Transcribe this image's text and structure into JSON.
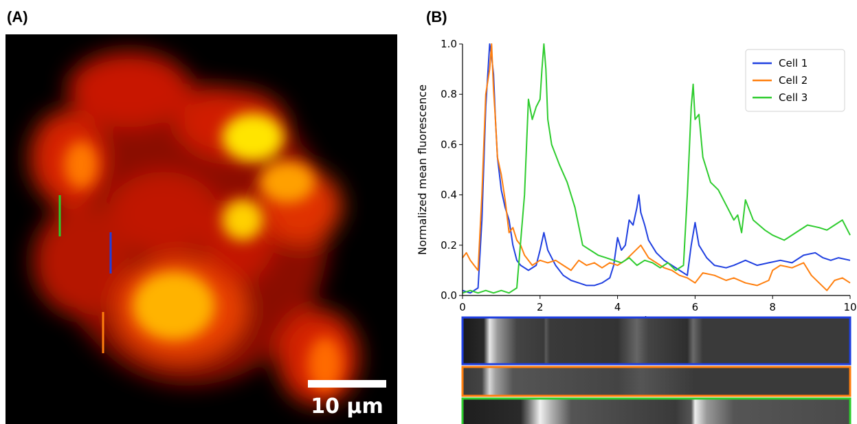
{
  "panels": {
    "a_label": "(A)",
    "b_label": "(B)"
  },
  "scale_bar": {
    "label": "10 μm"
  },
  "markers": [
    {
      "cell": "Cell 1",
      "color": "#1f3fe0"
    },
    {
      "cell": "Cell 2",
      "color": "#ff7f0e"
    },
    {
      "cell": "Cell 3",
      "color": "#2ecc2e"
    }
  ],
  "chart_data": {
    "type": "line",
    "xlabel": "Minutes",
    "ylabel": "Normalized mean fluorescence",
    "xlim": [
      0,
      10
    ],
    "ylim": [
      0,
      1.0
    ],
    "x_ticks": [
      0,
      2,
      4,
      6,
      8,
      10
    ],
    "y_ticks": [
      0.0,
      0.2,
      0.4,
      0.6,
      0.8,
      1.0
    ],
    "x_tick_labels": [
      "0",
      "2",
      "4",
      "6",
      "8",
      "10"
    ],
    "y_tick_labels": [
      "0.0",
      "0.2",
      "0.4",
      "0.6",
      "0.8",
      "1.0"
    ],
    "grid": false,
    "legend_position": "top-right",
    "series": [
      {
        "name": "Cell 1",
        "color": "#1f3fe0",
        "x": [
          0,
          0.2,
          0.4,
          0.5,
          0.6,
          0.7,
          0.75,
          0.8,
          0.85,
          0.9,
          1.0,
          1.1,
          1.2,
          1.3,
          1.4,
          1.5,
          1.7,
          1.9,
          2.0,
          2.1,
          2.2,
          2.4,
          2.6,
          2.8,
          3.0,
          3.2,
          3.4,
          3.6,
          3.8,
          3.9,
          4.0,
          4.1,
          4.2,
          4.3,
          4.4,
          4.5,
          4.55,
          4.6,
          4.7,
          4.8,
          5.0,
          5.2,
          5.4,
          5.6,
          5.8,
          5.9,
          6.0,
          6.1,
          6.3,
          6.5,
          6.8,
          7.0,
          7.3,
          7.6,
          7.9,
          8.2,
          8.5,
          8.8,
          9.1,
          9.3,
          9.5,
          9.7,
          10.0
        ],
        "y": [
          0.02,
          0.01,
          0.03,
          0.3,
          0.75,
          1.0,
          0.95,
          0.88,
          0.7,
          0.55,
          0.42,
          0.35,
          0.3,
          0.2,
          0.14,
          0.12,
          0.1,
          0.12,
          0.18,
          0.25,
          0.18,
          0.12,
          0.08,
          0.06,
          0.05,
          0.04,
          0.04,
          0.05,
          0.07,
          0.12,
          0.23,
          0.18,
          0.2,
          0.3,
          0.28,
          0.35,
          0.4,
          0.33,
          0.28,
          0.22,
          0.17,
          0.14,
          0.12,
          0.1,
          0.08,
          0.2,
          0.29,
          0.2,
          0.15,
          0.12,
          0.11,
          0.12,
          0.14,
          0.12,
          0.13,
          0.14,
          0.13,
          0.16,
          0.17,
          0.15,
          0.14,
          0.15,
          0.14
        ]
      },
      {
        "name": "Cell 2",
        "color": "#ff7f0e",
        "x": [
          0,
          0.1,
          0.2,
          0.3,
          0.4,
          0.5,
          0.6,
          0.7,
          0.75,
          0.8,
          0.85,
          0.9,
          1.0,
          1.1,
          1.2,
          1.3,
          1.4,
          1.5,
          1.6,
          1.8,
          2.0,
          2.2,
          2.4,
          2.6,
          2.8,
          3.0,
          3.2,
          3.4,
          3.6,
          3.8,
          4.0,
          4.2,
          4.4,
          4.6,
          4.8,
          5.0,
          5.2,
          5.4,
          5.6,
          5.8,
          6.0,
          6.2,
          6.5,
          6.8,
          7.0,
          7.3,
          7.6,
          7.9,
          8.0,
          8.2,
          8.5,
          8.8,
          9.0,
          9.2,
          9.4,
          9.6,
          9.8,
          10.0
        ],
        "y": [
          0.15,
          0.17,
          0.14,
          0.12,
          0.1,
          0.4,
          0.8,
          0.9,
          1.0,
          0.82,
          0.7,
          0.55,
          0.48,
          0.38,
          0.25,
          0.27,
          0.22,
          0.2,
          0.16,
          0.12,
          0.14,
          0.13,
          0.14,
          0.12,
          0.1,
          0.14,
          0.12,
          0.13,
          0.11,
          0.13,
          0.12,
          0.14,
          0.17,
          0.2,
          0.15,
          0.13,
          0.11,
          0.1,
          0.08,
          0.07,
          0.05,
          0.09,
          0.08,
          0.06,
          0.07,
          0.05,
          0.04,
          0.06,
          0.1,
          0.12,
          0.11,
          0.13,
          0.08,
          0.05,
          0.02,
          0.06,
          0.07,
          0.05
        ]
      },
      {
        "name": "Cell 3",
        "color": "#2ecc2e",
        "x": [
          0,
          0.2,
          0.4,
          0.6,
          0.8,
          1.0,
          1.2,
          1.4,
          1.6,
          1.7,
          1.8,
          1.9,
          2.0,
          2.05,
          2.1,
          2.15,
          2.2,
          2.3,
          2.5,
          2.7,
          2.9,
          3.1,
          3.3,
          3.5,
          3.7,
          3.9,
          4.1,
          4.3,
          4.5,
          4.7,
          4.9,
          5.1,
          5.3,
          5.5,
          5.7,
          5.8,
          5.9,
          5.95,
          6.0,
          6.1,
          6.2,
          6.4,
          6.6,
          6.8,
          7.0,
          7.1,
          7.2,
          7.3,
          7.5,
          7.8,
          8.0,
          8.3,
          8.6,
          8.9,
          9.2,
          9.4,
          9.6,
          9.8,
          10.0
        ],
        "y": [
          0.01,
          0.02,
          0.01,
          0.02,
          0.01,
          0.02,
          0.01,
          0.03,
          0.4,
          0.78,
          0.7,
          0.75,
          0.78,
          0.9,
          1.0,
          0.9,
          0.7,
          0.6,
          0.52,
          0.45,
          0.35,
          0.2,
          0.18,
          0.16,
          0.15,
          0.14,
          0.13,
          0.15,
          0.12,
          0.14,
          0.13,
          0.11,
          0.13,
          0.1,
          0.12,
          0.4,
          0.75,
          0.84,
          0.7,
          0.72,
          0.55,
          0.45,
          0.42,
          0.36,
          0.3,
          0.32,
          0.25,
          0.38,
          0.3,
          0.26,
          0.24,
          0.22,
          0.25,
          0.28,
          0.27,
          0.26,
          0.28,
          0.3,
          0.24
        ]
      }
    ]
  },
  "kymographs": [
    {
      "cell": "Cell 1",
      "color": "#1f3fe0"
    },
    {
      "cell": "Cell 2",
      "color": "#ff7f0e"
    },
    {
      "cell": "Cell 3",
      "color": "#2ecc2e"
    }
  ]
}
